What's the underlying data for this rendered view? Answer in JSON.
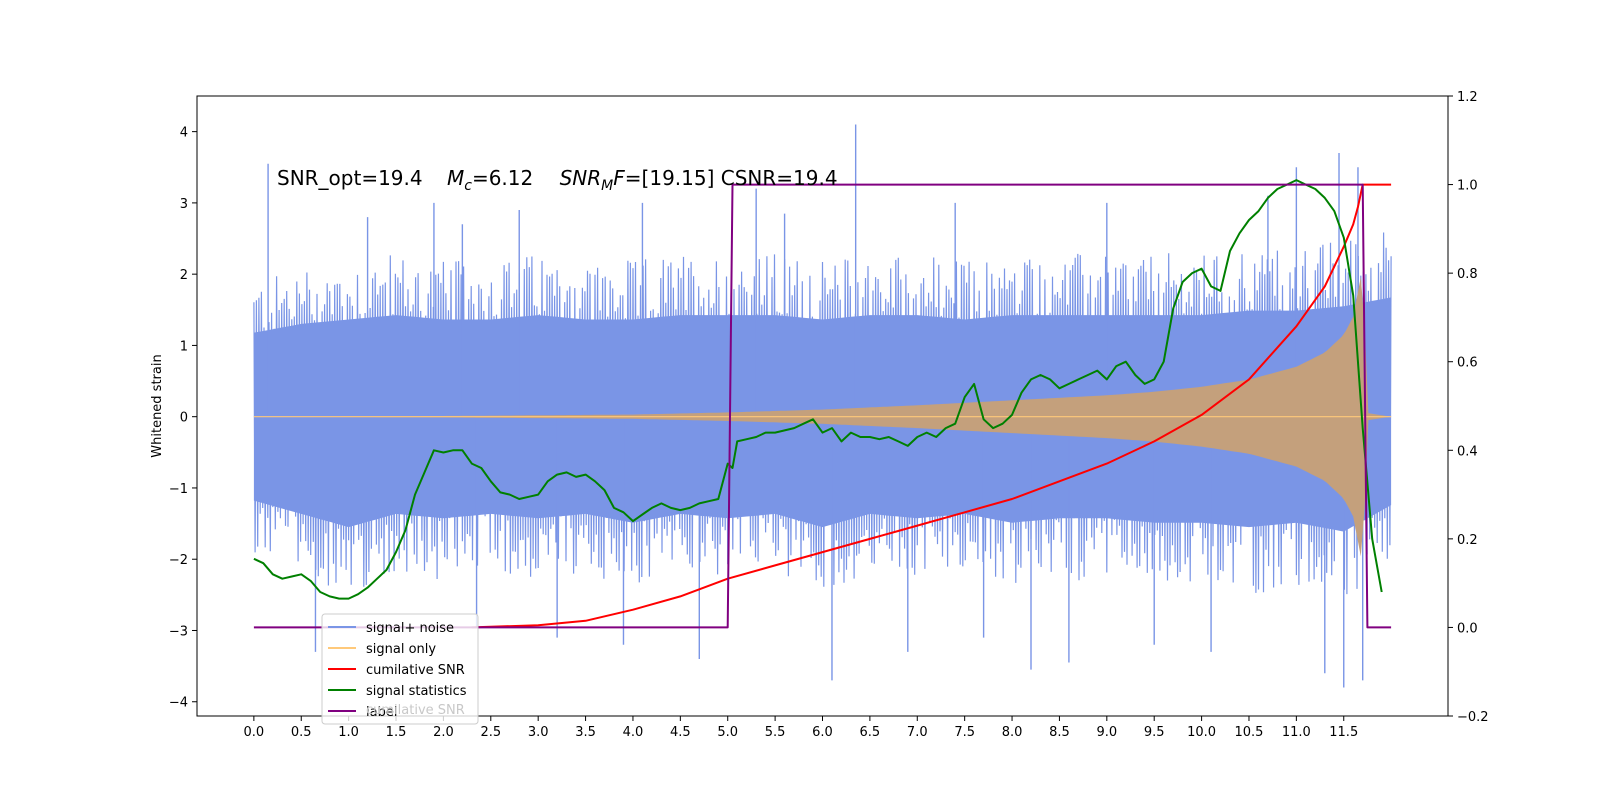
{
  "chart_data": {
    "type": "line",
    "title": "",
    "xlabel": "",
    "ylabel": "Whitened strain",
    "xlim": [
      -0.6,
      12.6
    ],
    "ylim": [
      -4.2,
      4.5
    ],
    "y2lim": [
      -0.2,
      1.2
    ],
    "x_ticks": [
      0.0,
      0.5,
      1.0,
      1.5,
      2.0,
      2.5,
      3.0,
      3.5,
      4.0,
      4.5,
      5.0,
      5.5,
      6.0,
      6.5,
      7.0,
      7.5,
      8.0,
      8.5,
      9.0,
      9.5,
      10.0,
      10.5,
      11.0,
      11.5
    ],
    "x_tick_labels": [
      "0.0",
      "0.5",
      "1.0",
      "1.5",
      "2.0",
      "2.5",
      "3.0",
      "3.5",
      "4.0",
      "4.5",
      "5.0",
      "5.5",
      "6.0",
      "6.5",
      "7.0",
      "7.5",
      "8.0",
      "8.5",
      "9.0",
      "9.5",
      "10.0",
      "10.5",
      "11.0",
      "11.5"
    ],
    "y_ticks": [
      -4,
      -3,
      -2,
      -1,
      0,
      1,
      2,
      3,
      4
    ],
    "y_tick_labels": [
      "−4",
      "−3",
      "−2",
      "−1",
      "0",
      "1",
      "2",
      "3",
      "4"
    ],
    "y2_ticks": [
      -0.2,
      0.0,
      0.2,
      0.4,
      0.6,
      0.8,
      1.0,
      1.2
    ],
    "y2_tick_labels": [
      "−0.2",
      "0.0",
      "0.2",
      "0.4",
      "0.6",
      "0.8",
      "1.0",
      "1.2"
    ],
    "grid": false,
    "legend_position": "lower-left",
    "annotation": {
      "part1": "SNR_opt=19.4",
      "mc_symbol": "M",
      "mc_sub": "c",
      "mc_value": "=6.12",
      "snr_symbol": "SNR",
      "snr_sub": "M",
      "snr_tail": "F",
      "snr_value": "=[19.15] CSNR=19.4"
    },
    "legend": [
      {
        "label": "signal+ noise",
        "color": "#7a95e6"
      },
      {
        "label": "signal only",
        "color": "#ffc97a"
      },
      {
        "label": "cumilative SNR",
        "color": "#ff0000"
      },
      {
        "label": "signal statistics",
        "color": "#008000"
      },
      {
        "label": "label",
        "color": "#800080"
      }
    ],
    "legend_hidden_text": "cumilative SNR",
    "colors": {
      "noise": "#7a95e6",
      "signal": "#c4a07c",
      "signal_edge": "#ffc97a",
      "cumulative": "#ff0000",
      "statistics": "#008000",
      "label": "#800080"
    },
    "series": [
      {
        "name": "signal+ noise",
        "axis": "left",
        "kind": "band",
        "x_range": [
          0.0,
          12.0
        ],
        "lower_envelope": [
          [
            0.0,
            -1.9
          ],
          [
            0.5,
            -2.2
          ],
          [
            1.0,
            -2.5
          ],
          [
            1.5,
            -2.2
          ],
          [
            2.0,
            -2.3
          ],
          [
            2.5,
            -2.2
          ],
          [
            3.0,
            -2.3
          ],
          [
            3.5,
            -2.2
          ],
          [
            4.0,
            -2.4
          ],
          [
            4.5,
            -2.2
          ],
          [
            5.0,
            -2.3
          ],
          [
            5.5,
            -2.2
          ],
          [
            6.0,
            -2.5
          ],
          [
            6.5,
            -2.2
          ],
          [
            7.0,
            -2.3
          ],
          [
            7.5,
            -2.2
          ],
          [
            8.0,
            -2.4
          ],
          [
            8.5,
            -2.3
          ],
          [
            9.0,
            -2.3
          ],
          [
            9.5,
            -2.4
          ],
          [
            10.0,
            -2.4
          ],
          [
            10.5,
            -2.5
          ],
          [
            11.0,
            -2.4
          ],
          [
            11.5,
            -2.6
          ],
          [
            12.0,
            -2.0
          ]
        ],
        "upper_envelope": [
          [
            0.0,
            1.9
          ],
          [
            0.5,
            2.1
          ],
          [
            1.0,
            2.2
          ],
          [
            1.5,
            2.3
          ],
          [
            2.0,
            2.2
          ],
          [
            2.5,
            2.2
          ],
          [
            3.0,
            2.3
          ],
          [
            3.5,
            2.2
          ],
          [
            4.0,
            2.2
          ],
          [
            4.5,
            2.3
          ],
          [
            5.0,
            2.3
          ],
          [
            5.5,
            2.3
          ],
          [
            6.0,
            2.2
          ],
          [
            6.5,
            2.3
          ],
          [
            7.0,
            2.3
          ],
          [
            7.5,
            2.2
          ],
          [
            8.0,
            2.3
          ],
          [
            8.5,
            2.3
          ],
          [
            9.0,
            2.3
          ],
          [
            9.5,
            2.3
          ],
          [
            10.0,
            2.3
          ],
          [
            10.5,
            2.4
          ],
          [
            11.0,
            2.4
          ],
          [
            11.5,
            2.5
          ],
          [
            12.0,
            2.7
          ]
        ],
        "spikes": [
          [
            0.15,
            3.55
          ],
          [
            0.65,
            -3.3
          ],
          [
            1.2,
            2.8
          ],
          [
            1.9,
            3.0
          ],
          [
            2.2,
            2.7
          ],
          [
            2.35,
            -2.95
          ],
          [
            2.8,
            2.9
          ],
          [
            3.2,
            -3.1
          ],
          [
            3.9,
            -3.2
          ],
          [
            4.1,
            3.0
          ],
          [
            4.7,
            -3.4
          ],
          [
            5.3,
            3.2
          ],
          [
            5.6,
            2.85
          ],
          [
            6.1,
            -3.7
          ],
          [
            6.35,
            4.1
          ],
          [
            6.9,
            -3.3
          ],
          [
            7.4,
            3.0
          ],
          [
            7.7,
            -3.1
          ],
          [
            8.2,
            -3.55
          ],
          [
            8.6,
            -3.45
          ],
          [
            9.0,
            3.0
          ],
          [
            9.5,
            -3.2
          ],
          [
            10.1,
            -3.3
          ],
          [
            10.7,
            3.1
          ],
          [
            11.0,
            3.5
          ],
          [
            11.3,
            -3.6
          ],
          [
            11.45,
            3.7
          ],
          [
            11.5,
            -3.8
          ],
          [
            11.65,
            3.5
          ],
          [
            11.7,
            -3.7
          ]
        ]
      },
      {
        "name": "signal only",
        "axis": "left",
        "kind": "chirp_band",
        "x_range": [
          0.0,
          12.0
        ],
        "amplitude": [
          [
            0.0,
            0.0
          ],
          [
            2.0,
            0.01
          ],
          [
            4.0,
            0.03
          ],
          [
            5.0,
            0.06
          ],
          [
            6.0,
            0.1
          ],
          [
            7.0,
            0.16
          ],
          [
            8.0,
            0.23
          ],
          [
            9.0,
            0.3
          ],
          [
            9.5,
            0.35
          ],
          [
            10.0,
            0.42
          ],
          [
            10.5,
            0.52
          ],
          [
            11.0,
            0.7
          ],
          [
            11.3,
            0.9
          ],
          [
            11.5,
            1.15
          ],
          [
            11.6,
            1.4
          ],
          [
            11.7,
            2.1
          ],
          [
            11.75,
            0.05
          ],
          [
            12.0,
            0.0
          ]
        ]
      },
      {
        "name": "cumilative SNR",
        "axis": "right",
        "x": [
          2.3,
          3.0,
          3.5,
          4.0,
          4.5,
          5.0,
          5.5,
          6.0,
          6.5,
          7.0,
          7.5,
          8.0,
          8.5,
          9.0,
          9.5,
          10.0,
          10.5,
          11.0,
          11.3,
          11.5,
          11.6,
          11.65,
          11.7,
          12.0
        ],
        "y": [
          0.0,
          0.005,
          0.015,
          0.04,
          0.07,
          0.11,
          0.14,
          0.17,
          0.2,
          0.23,
          0.26,
          0.29,
          0.33,
          0.37,
          0.42,
          0.48,
          0.56,
          0.68,
          0.77,
          0.86,
          0.91,
          0.95,
          1.0,
          1.0
        ]
      },
      {
        "name": "signal statistics",
        "axis": "right",
        "x": [
          0.0,
          0.1,
          0.2,
          0.3,
          0.4,
          0.5,
          0.6,
          0.7,
          0.8,
          0.9,
          1.0,
          1.1,
          1.2,
          1.3,
          1.4,
          1.5,
          1.6,
          1.7,
          1.8,
          1.9,
          2.0,
          2.1,
          2.2,
          2.3,
          2.4,
          2.5,
          2.6,
          2.7,
          2.8,
          2.9,
          3.0,
          3.1,
          3.2,
          3.3,
          3.4,
          3.5,
          3.6,
          3.7,
          3.8,
          3.9,
          4.0,
          4.1,
          4.2,
          4.3,
          4.4,
          4.5,
          4.6,
          4.7,
          4.8,
          4.9,
          5.0,
          5.05,
          5.1,
          5.2,
          5.3,
          5.4,
          5.5,
          5.6,
          5.7,
          5.8,
          5.9,
          6.0,
          6.1,
          6.2,
          6.3,
          6.4,
          6.5,
          6.6,
          6.7,
          6.8,
          6.9,
          7.0,
          7.1,
          7.2,
          7.3,
          7.4,
          7.5,
          7.6,
          7.7,
          7.8,
          7.9,
          8.0,
          8.1,
          8.2,
          8.3,
          8.4,
          8.5,
          8.6,
          8.7,
          8.8,
          8.9,
          9.0,
          9.1,
          9.2,
          9.3,
          9.4,
          9.5,
          9.6,
          9.7,
          9.8,
          9.9,
          10.0,
          10.1,
          10.2,
          10.3,
          10.4,
          10.5,
          10.6,
          10.7,
          10.8,
          10.9,
          11.0,
          11.1,
          11.2,
          11.3,
          11.4,
          11.5,
          11.6,
          11.7,
          11.8,
          11.9
        ],
        "y": [
          0.155,
          0.145,
          0.12,
          0.11,
          0.115,
          0.12,
          0.105,
          0.08,
          0.07,
          0.065,
          0.065,
          0.075,
          0.09,
          0.11,
          0.13,
          0.17,
          0.22,
          0.3,
          0.35,
          0.4,
          0.395,
          0.4,
          0.4,
          0.37,
          0.36,
          0.33,
          0.305,
          0.3,
          0.29,
          0.295,
          0.3,
          0.33,
          0.345,
          0.35,
          0.34,
          0.345,
          0.33,
          0.31,
          0.27,
          0.26,
          0.24,
          0.255,
          0.27,
          0.28,
          0.27,
          0.265,
          0.27,
          0.28,
          0.285,
          0.29,
          0.37,
          0.36,
          0.42,
          0.425,
          0.43,
          0.44,
          0.44,
          0.445,
          0.45,
          0.46,
          0.47,
          0.44,
          0.45,
          0.42,
          0.44,
          0.43,
          0.43,
          0.425,
          0.43,
          0.42,
          0.41,
          0.43,
          0.44,
          0.43,
          0.45,
          0.46,
          0.52,
          0.55,
          0.47,
          0.45,
          0.46,
          0.48,
          0.53,
          0.56,
          0.57,
          0.56,
          0.54,
          0.55,
          0.56,
          0.57,
          0.58,
          0.56,
          0.59,
          0.6,
          0.57,
          0.55,
          0.56,
          0.6,
          0.72,
          0.78,
          0.8,
          0.81,
          0.77,
          0.76,
          0.85,
          0.89,
          0.92,
          0.94,
          0.97,
          0.99,
          1.0,
          1.01,
          1.0,
          0.99,
          0.97,
          0.94,
          0.88,
          0.75,
          0.45,
          0.2,
          0.08
        ]
      },
      {
        "name": "label",
        "axis": "right",
        "x": [
          0.0,
          5.0,
          5.05,
          11.7,
          11.75,
          12.0
        ],
        "y": [
          0.0,
          0.0,
          1.0,
          1.0,
          0.0,
          0.0
        ]
      }
    ]
  }
}
